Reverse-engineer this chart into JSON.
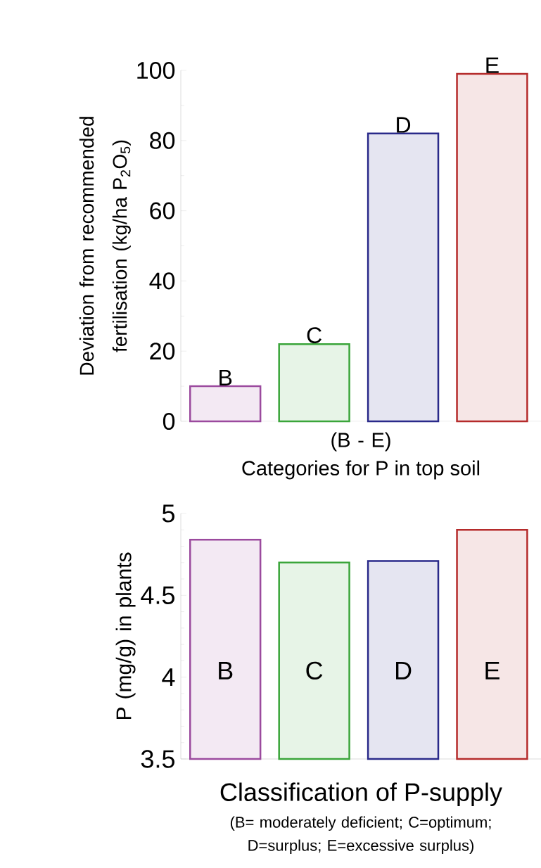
{
  "chart_data": [
    {
      "type": "bar",
      "categories": [
        "B",
        "C",
        "D",
        "E"
      ],
      "values": [
        10,
        22,
        82,
        99
      ],
      "colors": [
        "#9b4a9e",
        "#3aa53a",
        "#2a2a8a",
        "#b52b2b"
      ],
      "ylabel": "Deviation from recommended fertilisation (kg/ha P$_{2}$O$_{5}$)",
      "xlabel": "Categories for P in top soil",
      "annotations": [
        "(B - E)"
      ],
      "ylim": [
        0,
        100
      ],
      "yticks": [
        0,
        20,
        40,
        60,
        80,
        100
      ]
    },
    {
      "type": "bar",
      "categories": [
        "B",
        "C",
        "D",
        "E"
      ],
      "values": [
        4.84,
        4.7,
        4.71,
        4.9
      ],
      "colors": [
        "#9b4a9e",
        "#3aa53a",
        "#2a2a8a",
        "#b52b2b"
      ],
      "ylabel": "P (mg/g) in plants",
      "xlabel": "Classification of P-supply",
      "annotations": [
        "(B= moderately deficient; C=optimum; D=surplus; E=excessive surplus)"
      ],
      "ylim": [
        3.5,
        5
      ],
      "yticks": [
        3.5,
        4,
        4.5,
        5
      ]
    }
  ]
}
